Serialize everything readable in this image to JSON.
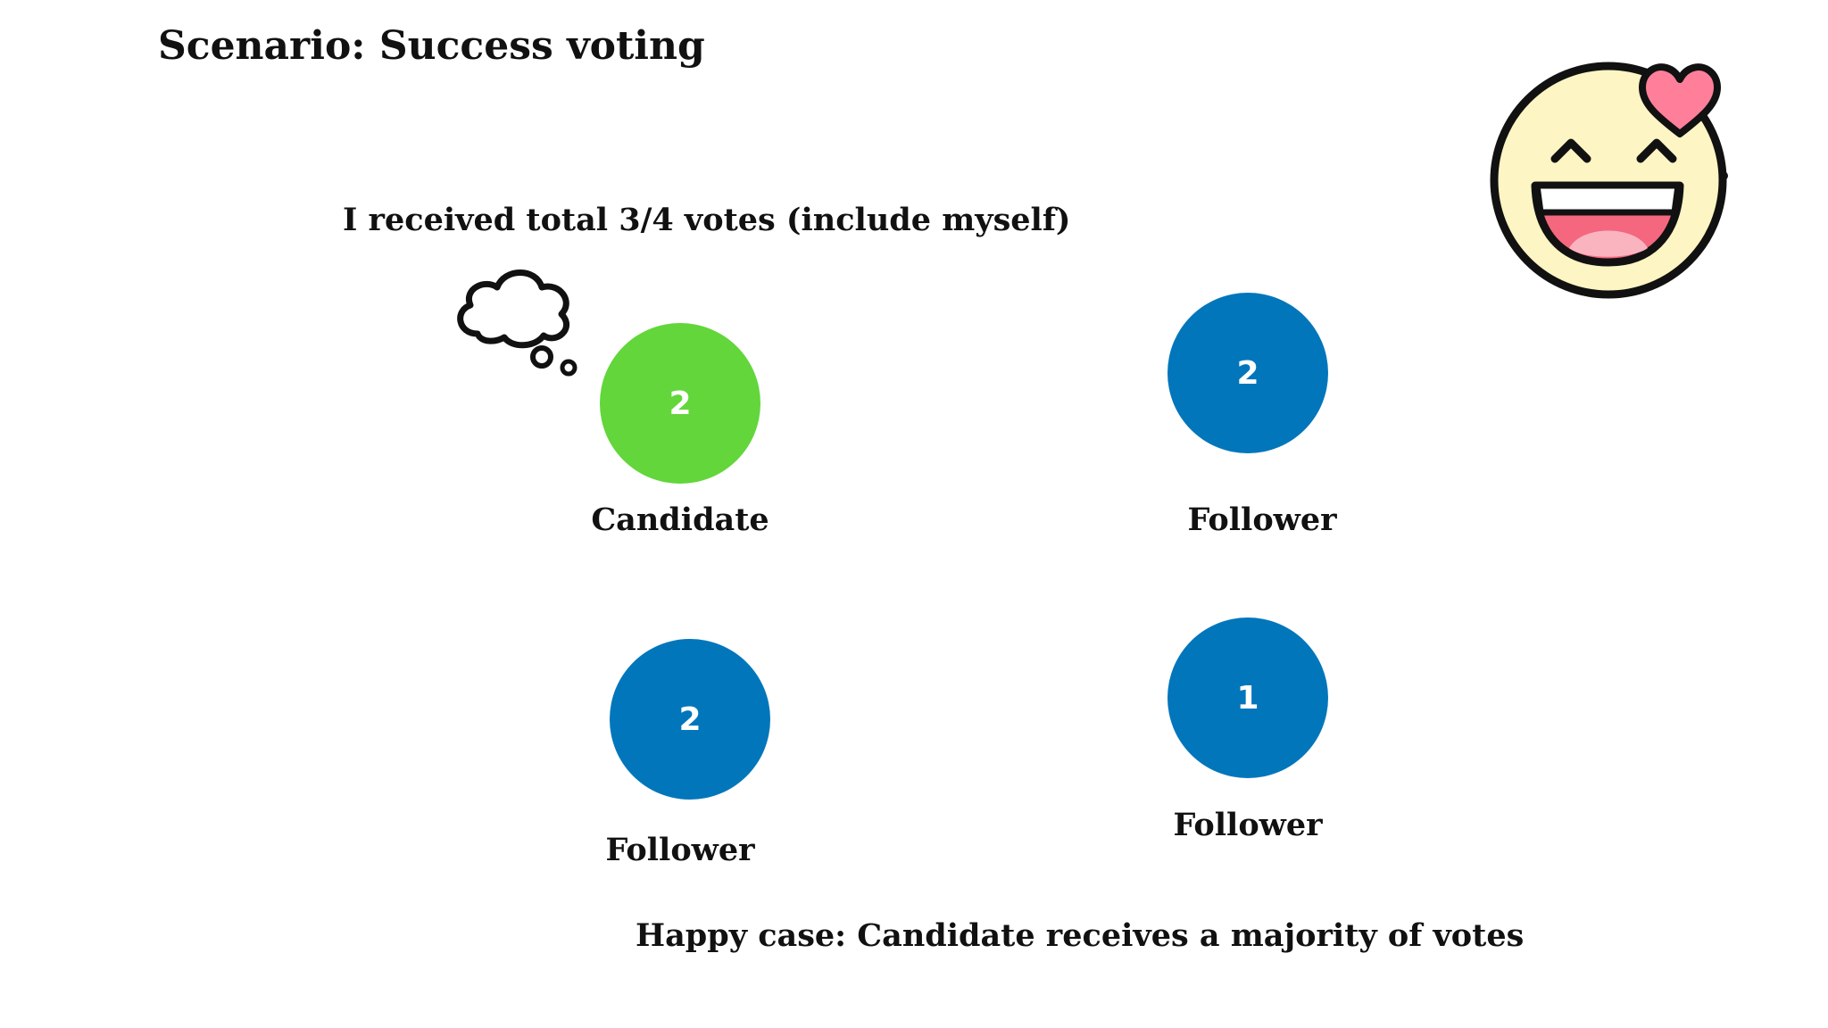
{
  "title": "Scenario: Success voting",
  "thought": {
    "text": "I received total 3/4 votes (include myself)",
    "icon": "thought-cloud-icon"
  },
  "nodes": [
    {
      "value": "2",
      "label": "Candidate",
      "color": "#62d63b"
    },
    {
      "value": "2",
      "label": "Follower",
      "color": "#0276bb"
    },
    {
      "value": "2",
      "label": "Follower",
      "color": "#0276bb"
    },
    {
      "value": "1",
      "label": "Follower",
      "color": "#0276bb"
    }
  ],
  "caption": "Happy case: Candidate receives a majority of votes",
  "emoji": {
    "icon": "smiling-face-with-heart-icon",
    "face_color": "#fdf5c3",
    "heart_color": "#ff7f9a",
    "mouth_color": "#f4677f",
    "tongue_color": "#f9b4c0"
  }
}
